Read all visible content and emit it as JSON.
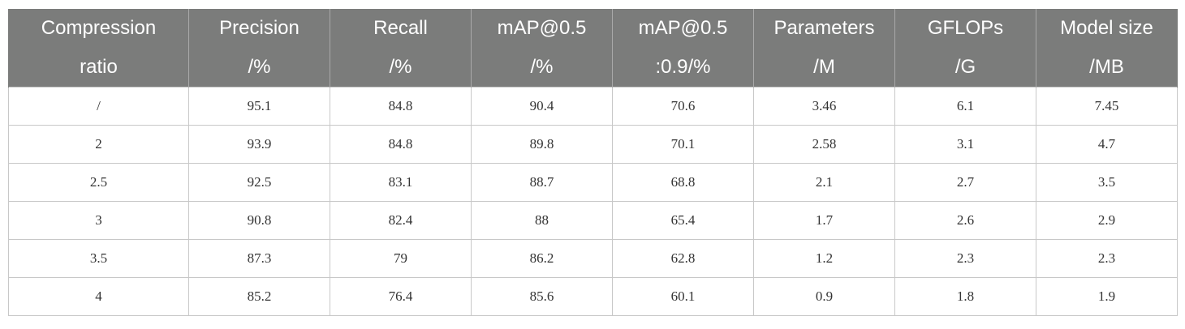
{
  "table": {
    "header": [
      [
        "Compression",
        "ratio"
      ],
      [
        "Precision",
        "/%"
      ],
      [
        "Recall",
        "/%"
      ],
      [
        "mAP@0.5",
        "/%"
      ],
      [
        "mAP@0.5",
        ":0.9/%"
      ],
      [
        "Parameters",
        "/M"
      ],
      [
        "GFLOPs",
        "/G"
      ],
      [
        "Model size",
        "/MB"
      ]
    ],
    "rows": [
      [
        "/",
        "95.1",
        "84.8",
        "90.4",
        "70.6",
        "3.46",
        "6.1",
        "7.45"
      ],
      [
        "2",
        "93.9",
        "84.8",
        "89.8",
        "70.1",
        "2.58",
        "3.1",
        "4.7"
      ],
      [
        "2.5",
        "92.5",
        "83.1",
        "88.7",
        "68.8",
        "2.1",
        "2.7",
        "3.5"
      ],
      [
        "3",
        "90.8",
        "82.4",
        "88",
        "65.4",
        "1.7",
        "2.6",
        "2.9"
      ],
      [
        "3.5",
        "87.3",
        "79",
        "86.2",
        "62.8",
        "1.2",
        "2.3",
        "2.3"
      ],
      [
        "4",
        "85.2",
        "76.4",
        "85.6",
        "60.1",
        "0.9",
        "1.8",
        "1.9"
      ]
    ]
  }
}
